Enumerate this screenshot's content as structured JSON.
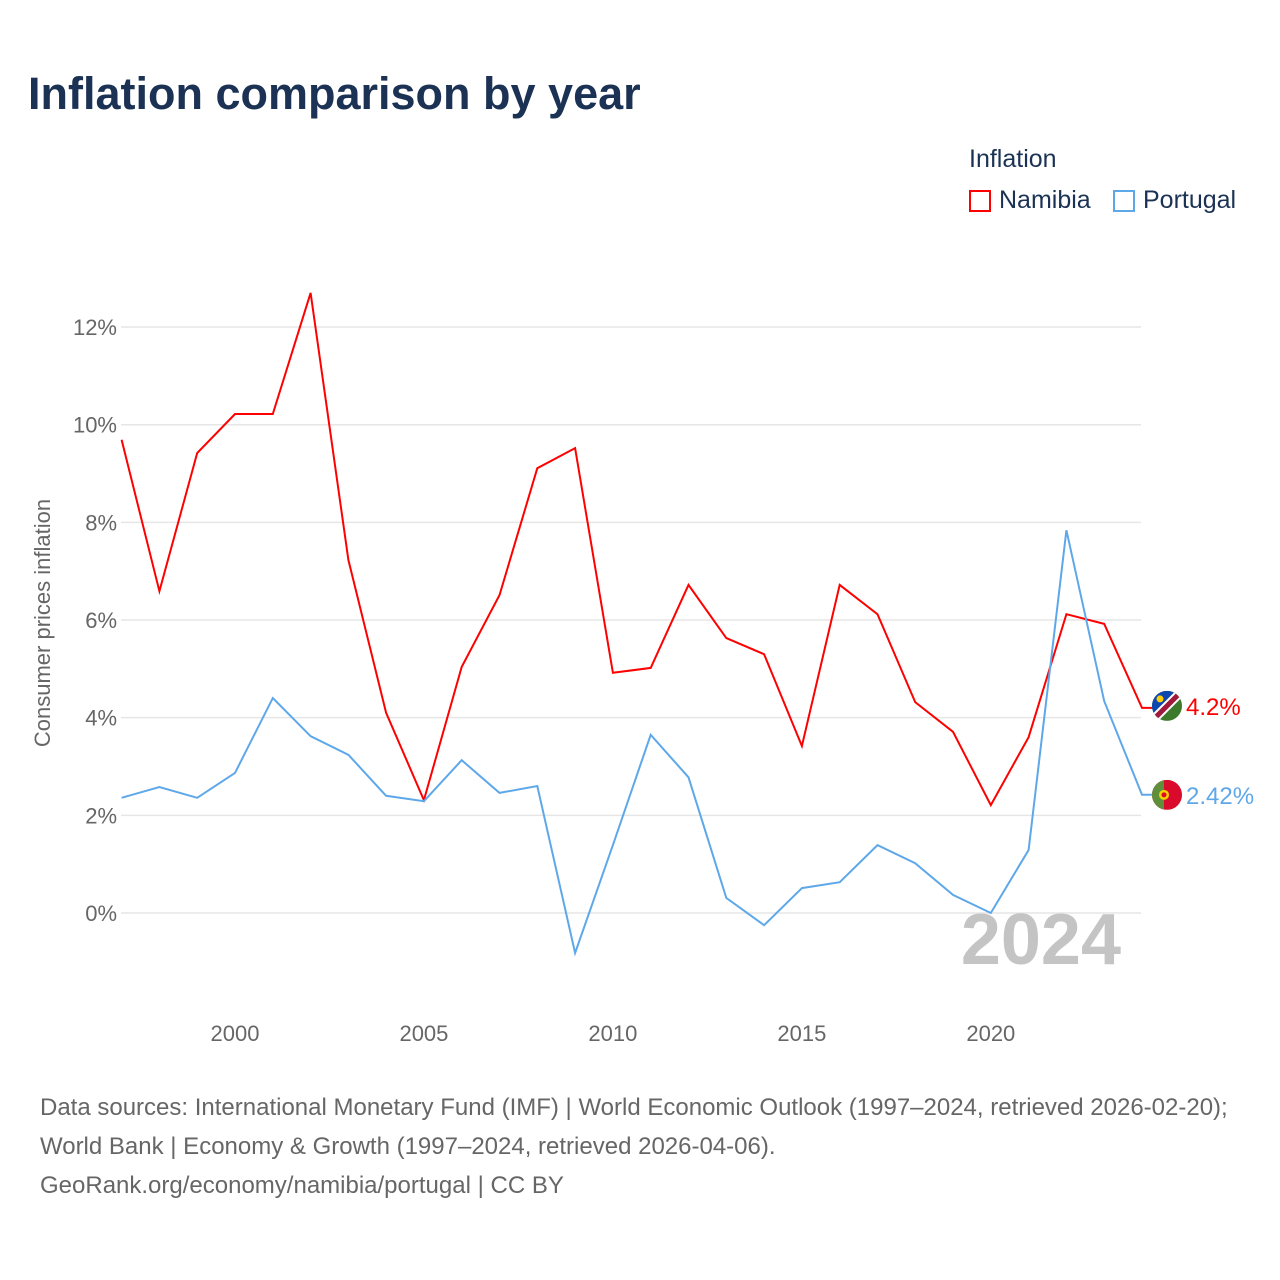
{
  "chart_data": {
    "type": "line",
    "title": "Inflation comparison by year",
    "xlabel": "",
    "ylabel": "Consumer prices inflation",
    "legend_title": "Inflation",
    "legend_position": "top-right",
    "year_watermark": "2024",
    "x": [
      1997,
      1998,
      1999,
      2000,
      2001,
      2002,
      2003,
      2004,
      2005,
      2006,
      2007,
      2008,
      2009,
      2010,
      2011,
      2012,
      2013,
      2014,
      2015,
      2016,
      2017,
      2018,
      2019,
      2020,
      2021,
      2022,
      2023,
      2024
    ],
    "xlim": [
      1997,
      2024
    ],
    "ylim": [
      -1.9,
      13.5
    ],
    "x_ticks": [
      "2000",
      "2005",
      "2010",
      "2015",
      "2020"
    ],
    "y_ticks": [
      "0%",
      "2%",
      "4%",
      "6%",
      "8%",
      "10%",
      "12%"
    ],
    "grid": true,
    "series": [
      {
        "name": "Namibia",
        "color": "#ff0000",
        "end_label": "4.2%",
        "values": [
          9.69,
          6.59,
          9.42,
          10.22,
          10.22,
          12.7,
          7.23,
          4.1,
          2.31,
          5.04,
          6.51,
          9.11,
          9.52,
          4.92,
          5.02,
          6.72,
          5.63,
          5.3,
          3.42,
          6.72,
          6.12,
          4.32,
          3.71,
          2.21,
          3.6,
          6.12,
          5.92,
          4.2
        ]
      },
      {
        "name": "Portugal",
        "color": "#5ea8ea",
        "end_label": "2.42%",
        "values": [
          2.36,
          2.58,
          2.36,
          2.87,
          4.4,
          3.62,
          3.24,
          2.4,
          2.29,
          3.13,
          2.46,
          2.6,
          -0.82,
          1.39,
          3.65,
          2.78,
          0.31,
          -0.25,
          0.51,
          0.63,
          1.39,
          1.02,
          0.37,
          0.0,
          1.29,
          7.84,
          4.34,
          2.42
        ]
      }
    ]
  },
  "footer": {
    "sources": "Data sources: International Monetary Fund (IMF) | World Economic Outlook (1997–2024, retrieved 2026-02-20); World Bank | Economy & Growth (1997–2024, retrieved 2026-04-06).",
    "link": "GeoRank.org/economy/namibia/portugal | CC BY"
  }
}
